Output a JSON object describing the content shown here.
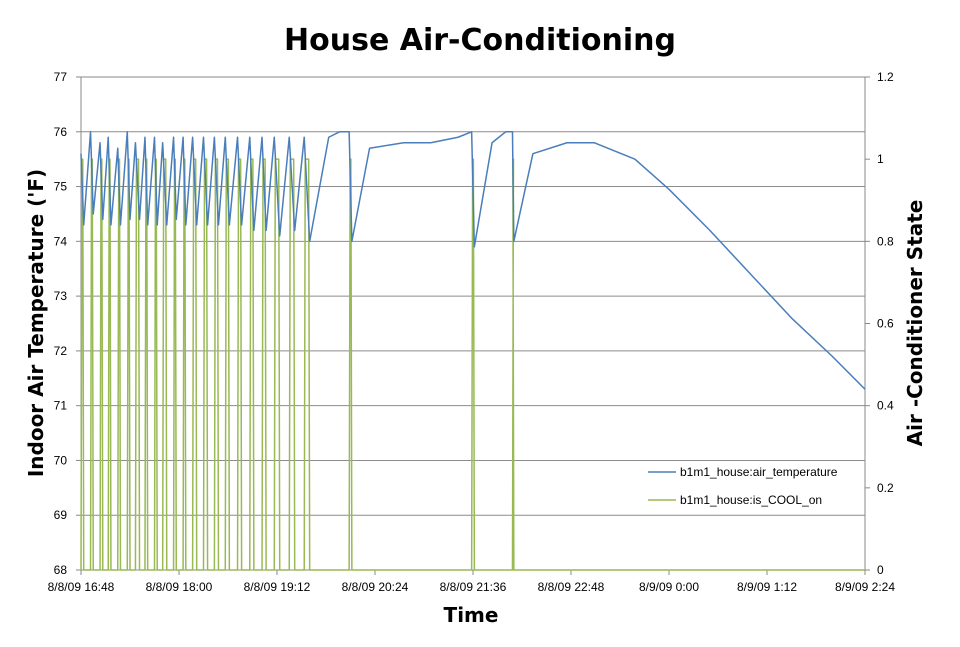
{
  "chart_data": {
    "type": "line",
    "title": "House Air-Conditioning",
    "xlabel": "Time",
    "ylabel": "Indoor Air Temperature ('F)",
    "y2label": "Air -Conditioner State",
    "x_tick_labels": [
      "8/8/09 16:48",
      "8/8/09 18:00",
      "8/8/09 19:12",
      "8/8/09 20:24",
      "8/8/09 21:36",
      "8/8/09 22:48",
      "8/9/09 0:00",
      "8/9/09 1:12",
      "8/9/09 2:24"
    ],
    "y_tick_labels": [
      "68",
      "69",
      "70",
      "71",
      "72",
      "73",
      "74",
      "75",
      "76",
      "77"
    ],
    "y2_tick_labels": [
      "0",
      "0.2",
      "0.4",
      "0.6",
      "0.8",
      "1",
      "1.2"
    ],
    "xlim": [
      "8/8/09 16:48",
      "8/9/09 2:24"
    ],
    "ylim": [
      68,
      77
    ],
    "y2lim": [
      0,
      1.2
    ],
    "grid": "horizontal major gridlines",
    "legend_position": "bottom-right",
    "colors": {
      "air_temperature": "#4a7ebb",
      "is_COOL_on": "#98b954"
    },
    "series": [
      {
        "name": "b1m1_house:air_temperature",
        "axis": "left",
        "points": [
          [
            "8/8/09 16:48",
            75.6
          ],
          [
            "8/8/09 16:50",
            74.3
          ],
          [
            "8/8/09 16:55",
            76.0
          ],
          [
            "8/8/09 16:57",
            74.5
          ],
          [
            "8/8/09 17:02",
            75.8
          ],
          [
            "8/8/09 17:04",
            74.4
          ],
          [
            "8/8/09 17:08",
            75.9
          ],
          [
            "8/8/09 17:10",
            74.3
          ],
          [
            "8/8/09 17:15",
            75.7
          ],
          [
            "8/8/09 17:17",
            74.3
          ],
          [
            "8/8/09 17:22",
            76.0
          ],
          [
            "8/8/09 17:24",
            74.4
          ],
          [
            "8/8/09 17:28",
            75.8
          ],
          [
            "8/8/09 17:31",
            74.4
          ],
          [
            "8/8/09 17:35",
            75.9
          ],
          [
            "8/8/09 17:37",
            74.3
          ],
          [
            "8/8/09 17:42",
            75.9
          ],
          [
            "8/8/09 17:44",
            74.3
          ],
          [
            "8/8/09 17:48",
            75.8
          ],
          [
            "8/8/09 17:51",
            74.3
          ],
          [
            "8/8/09 17:56",
            75.9
          ],
          [
            "8/8/09 17:58",
            74.4
          ],
          [
            "8/8/09 18:03",
            75.9
          ],
          [
            "8/8/09 18:05",
            74.3
          ],
          [
            "8/8/09 18:10",
            75.9
          ],
          [
            "8/8/09 18:13",
            74.3
          ],
          [
            "8/8/09 18:18",
            75.9
          ],
          [
            "8/8/09 18:21",
            74.3
          ],
          [
            "8/8/09 18:26",
            75.9
          ],
          [
            "8/8/09 18:29",
            74.3
          ],
          [
            "8/8/09 18:34",
            75.9
          ],
          [
            "8/8/09 18:37",
            74.3
          ],
          [
            "8/8/09 18:43",
            75.9
          ],
          [
            "8/8/09 18:46",
            74.3
          ],
          [
            "8/8/09 18:52",
            75.9
          ],
          [
            "8/8/09 18:55",
            74.2
          ],
          [
            "8/8/09 19:01",
            75.9
          ],
          [
            "8/8/09 19:04",
            74.2
          ],
          [
            "8/8/09 19:10",
            75.9
          ],
          [
            "8/8/09 19:14",
            74.1
          ],
          [
            "8/8/09 19:21",
            75.9
          ],
          [
            "8/8/09 19:25",
            74.2
          ],
          [
            "8/8/09 19:32",
            75.9
          ],
          [
            "8/8/09 19:36",
            74.0
          ],
          [
            "8/8/09 19:50",
            75.9
          ],
          [
            "8/8/09 19:58",
            76.0
          ],
          [
            "8/8/09 20:05",
            76.0
          ],
          [
            "8/8/09 20:07",
            74.0
          ],
          [
            "8/8/09 20:20",
            75.7
          ],
          [
            "8/8/09 20:45",
            75.8
          ],
          [
            "8/8/09 21:05",
            75.8
          ],
          [
            "8/8/09 21:25",
            75.9
          ],
          [
            "8/8/09 21:35",
            76.0
          ],
          [
            "8/8/09 21:37",
            73.9
          ],
          [
            "8/8/09 21:50",
            75.8
          ],
          [
            "8/8/09 22:00",
            76.0
          ],
          [
            "8/8/09 22:05",
            76.0
          ],
          [
            "8/8/09 22:06",
            74.0
          ],
          [
            "8/8/09 22:20",
            75.6
          ],
          [
            "8/8/09 22:45",
            75.8
          ],
          [
            "8/8/09 23:05",
            75.8
          ],
          [
            "8/8/09 23:35",
            75.5
          ],
          [
            "8/9/09 0:00",
            74.95
          ],
          [
            "8/9/09 0:30",
            74.2
          ],
          [
            "8/9/09 1:00",
            73.4
          ],
          [
            "8/9/09 1:30",
            72.6
          ],
          [
            "8/9/09 2:00",
            71.9
          ],
          [
            "8/9/09 2:24",
            71.3
          ]
        ]
      },
      {
        "name": "b1m1_house:is_COOL_on",
        "axis": "right",
        "on_intervals": [
          [
            "8/8/09 16:48",
            "8/8/09 16:50"
          ],
          [
            "8/8/09 16:55",
            "8/8/09 16:57"
          ],
          [
            "8/8/09 17:02",
            "8/8/09 17:04"
          ],
          [
            "8/8/09 17:08",
            "8/8/09 17:10"
          ],
          [
            "8/8/09 17:15",
            "8/8/09 17:17"
          ],
          [
            "8/8/09 17:22",
            "8/8/09 17:24"
          ],
          [
            "8/8/09 17:28",
            "8/8/09 17:31"
          ],
          [
            "8/8/09 17:35",
            "8/8/09 17:37"
          ],
          [
            "8/8/09 17:42",
            "8/8/09 17:44"
          ],
          [
            "8/8/09 17:48",
            "8/8/09 17:51"
          ],
          [
            "8/8/09 17:56",
            "8/8/09 17:58"
          ],
          [
            "8/8/09 18:03",
            "8/8/09 18:05"
          ],
          [
            "8/8/09 18:10",
            "8/8/09 18:13"
          ],
          [
            "8/8/09 18:18",
            "8/8/09 18:21"
          ],
          [
            "8/8/09 18:26",
            "8/8/09 18:29"
          ],
          [
            "8/8/09 18:34",
            "8/8/09 18:37"
          ],
          [
            "8/8/09 18:43",
            "8/8/09 18:46"
          ],
          [
            "8/8/09 18:52",
            "8/8/09 18:55"
          ],
          [
            "8/8/09 19:01",
            "8/8/09 19:04"
          ],
          [
            "8/8/09 19:10",
            "8/8/09 19:14"
          ],
          [
            "8/8/09 19:21",
            "8/8/09 19:25"
          ],
          [
            "8/8/09 19:32",
            "8/8/09 19:36"
          ],
          [
            "8/8/09 20:05",
            "8/8/09 20:07"
          ],
          [
            "8/8/09 21:35",
            "8/8/09 21:37"
          ],
          [
            "8/8/09 22:05",
            "8/8/09 22:06"
          ]
        ]
      }
    ]
  }
}
